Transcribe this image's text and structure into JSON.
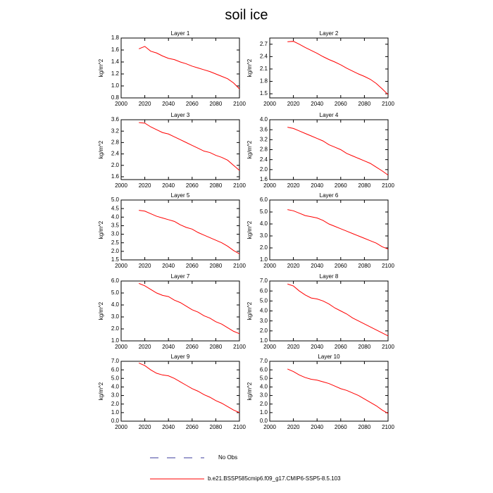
{
  "title": "soil ice",
  "obs_legend": {
    "name": "No Obs",
    "color": "#3c3c9c"
  },
  "chart_data": [
    {
      "type": "line",
      "title": "Layer 1",
      "ylabel": "kg/m^2",
      "xlim": [
        2000,
        2100
      ],
      "xticks": [
        2000,
        2020,
        2040,
        2060,
        2080,
        2100
      ],
      "ylim": [
        0.8,
        1.8
      ],
      "yticks": [
        0.8,
        {
          "value": 1,
          "label": "1.0"
        },
        1.2,
        1.4,
        1.6,
        1.8
      ],
      "x": [
        2015,
        2020,
        2025,
        2030,
        2035,
        2040,
        2045,
        2050,
        2055,
        2060,
        2065,
        2070,
        2075,
        2080,
        2085,
        2090,
        2095,
        2100
      ],
      "series": [
        {
          "name": "b.e21.BSSP585cmip6.f09_g17.CMIP6-SSP5-8.5.103",
          "color": "#ff0000",
          "values": [
            1.62,
            1.66,
            1.58,
            1.55,
            1.5,
            1.46,
            1.44,
            1.4,
            1.37,
            1.33,
            1.3,
            1.27,
            1.24,
            1.2,
            1.16,
            1.12,
            1.05,
            0.95
          ]
        }
      ]
    },
    {
      "type": "line",
      "title": "Layer 2",
      "ylabel": "kg/m^2",
      "xlim": [
        2000,
        2100
      ],
      "xticks": [
        2000,
        2020,
        2040,
        2060,
        2080,
        2100
      ],
      "ylim": [
        1.4,
        2.85
      ],
      "yticks": [
        1.5,
        1.8,
        2.1,
        2.4,
        2.7
      ],
      "x": [
        2015,
        2020,
        2025,
        2030,
        2035,
        2040,
        2045,
        2050,
        2055,
        2060,
        2065,
        2070,
        2075,
        2080,
        2085,
        2090,
        2095,
        2100
      ],
      "series": [
        {
          "name": "b.e21.BSSP585cmip6.f09_g17.CMIP6-SSP5-8.5.103",
          "color": "#ff0000",
          "values": [
            2.76,
            2.77,
            2.7,
            2.62,
            2.55,
            2.48,
            2.4,
            2.33,
            2.27,
            2.2,
            2.12,
            2.05,
            1.98,
            1.92,
            1.85,
            1.75,
            1.62,
            1.48
          ]
        }
      ]
    },
    {
      "type": "line",
      "title": "Layer 3",
      "ylabel": "kg/m^2",
      "xlim": [
        2000,
        2100
      ],
      "xticks": [
        2000,
        2020,
        2040,
        2060,
        2080,
        2100
      ],
      "ylim": [
        1.5,
        3.6
      ],
      "yticks": [
        1.6,
        {
          "value": 2,
          "label": "2.0"
        },
        2.4,
        2.8,
        3.2,
        3.6
      ],
      "x": [
        2015,
        2020,
        2025,
        2030,
        2035,
        2040,
        2045,
        2050,
        2055,
        2060,
        2065,
        2070,
        2075,
        2080,
        2085,
        2090,
        2095,
        2100
      ],
      "series": [
        {
          "name": "b.e21.BSSP585cmip6.f09_g17.CMIP6-SSP5-8.5.103",
          "color": "#ff0000",
          "values": [
            3.5,
            3.48,
            3.35,
            3.25,
            3.15,
            3.1,
            3.0,
            2.9,
            2.8,
            2.7,
            2.6,
            2.5,
            2.45,
            2.35,
            2.28,
            2.18,
            2.0,
            1.82
          ]
        }
      ]
    },
    {
      "type": "line",
      "title": "Layer 4",
      "ylabel": "kg/m^2",
      "xlim": [
        2000,
        2100
      ],
      "xticks": [
        2000,
        2020,
        2040,
        2060,
        2080,
        2100
      ],
      "ylim": [
        1.6,
        4.0
      ],
      "yticks": [
        1.6,
        {
          "value": 2,
          "label": "2.0"
        },
        2.4,
        2.8,
        3.2,
        3.6,
        {
          "value": 4,
          "label": "4.0"
        }
      ],
      "x": [
        2015,
        2020,
        2025,
        2030,
        2035,
        2040,
        2045,
        2050,
        2055,
        2060,
        2065,
        2070,
        2075,
        2080,
        2085,
        2090,
        2095,
        2100
      ],
      "series": [
        {
          "name": "b.e21.BSSP585cmip6.f09_g17.CMIP6-SSP5-8.5.103",
          "color": "#ff0000",
          "values": [
            3.7,
            3.65,
            3.55,
            3.45,
            3.35,
            3.25,
            3.15,
            3.0,
            2.9,
            2.8,
            2.65,
            2.55,
            2.45,
            2.35,
            2.25,
            2.1,
            1.95,
            1.78
          ]
        }
      ]
    },
    {
      "type": "line",
      "title": "Layer 5",
      "ylabel": "kg/m^2",
      "xlim": [
        2000,
        2100
      ],
      "xticks": [
        2000,
        2020,
        2040,
        2060,
        2080,
        2100
      ],
      "ylim": [
        1.5,
        5.0
      ],
      "yticks": [
        1.5,
        {
          "value": 2,
          "label": "2.0"
        },
        2.5,
        {
          "value": 3,
          "label": "3.0"
        },
        3.5,
        {
          "value": 4,
          "label": "4.0"
        },
        4.5,
        {
          "value": 5,
          "label": "5.0"
        }
      ],
      "x": [
        2015,
        2020,
        2025,
        2030,
        2035,
        2040,
        2045,
        2050,
        2055,
        2060,
        2065,
        2070,
        2075,
        2080,
        2085,
        2090,
        2095,
        2100
      ],
      "series": [
        {
          "name": "b.e21.BSSP585cmip6.f09_g17.CMIP6-SSP5-8.5.103",
          "color": "#ff0000",
          "values": [
            4.4,
            4.35,
            4.2,
            4.05,
            3.95,
            3.85,
            3.75,
            3.55,
            3.4,
            3.3,
            3.1,
            2.95,
            2.8,
            2.65,
            2.5,
            2.3,
            2.05,
            1.85
          ]
        }
      ]
    },
    {
      "type": "line",
      "title": "Layer 6",
      "ylabel": "kg/m^2",
      "xlim": [
        2000,
        2100
      ],
      "xticks": [
        2000,
        2020,
        2040,
        2060,
        2080,
        2100
      ],
      "ylim": [
        1,
        6
      ],
      "yticks": [
        {
          "value": 1,
          "label": "1.0"
        },
        {
          "value": 2,
          "label": "2.0"
        },
        {
          "value": 3,
          "label": "3.0"
        },
        {
          "value": 4,
          "label": "4.0"
        },
        {
          "value": 5,
          "label": "5.0"
        },
        {
          "value": 6,
          "label": "6.0"
        }
      ],
      "x": [
        2015,
        2020,
        2025,
        2030,
        2035,
        2040,
        2045,
        2050,
        2055,
        2060,
        2065,
        2070,
        2075,
        2080,
        2085,
        2090,
        2095,
        2100
      ],
      "series": [
        {
          "name": "b.e21.BSSP585cmip6.f09_g17.CMIP6-SSP5-8.5.103",
          "color": "#ff0000",
          "values": [
            5.2,
            5.1,
            4.9,
            4.7,
            4.6,
            4.5,
            4.3,
            4.0,
            3.8,
            3.6,
            3.4,
            3.2,
            3.0,
            2.8,
            2.6,
            2.4,
            2.1,
            1.9
          ]
        }
      ]
    },
    {
      "type": "line",
      "title": "Layer 7",
      "ylabel": "kg/m^2",
      "xlim": [
        2000,
        2100
      ],
      "xticks": [
        2000,
        2020,
        2040,
        2060,
        2080,
        2100
      ],
      "ylim": [
        1,
        6
      ],
      "yticks": [
        {
          "value": 1,
          "label": "1.0"
        },
        {
          "value": 2,
          "label": "2.0"
        },
        {
          "value": 3,
          "label": "3.0"
        },
        {
          "value": 4,
          "label": "4.0"
        },
        {
          "value": 5,
          "label": "5.0"
        },
        {
          "value": 6,
          "label": "6.0"
        }
      ],
      "x": [
        2015,
        2020,
        2025,
        2030,
        2035,
        2040,
        2045,
        2050,
        2055,
        2060,
        2065,
        2070,
        2075,
        2080,
        2085,
        2090,
        2095,
        2100
      ],
      "series": [
        {
          "name": "b.e21.BSSP585cmip6.f09_g17.CMIP6-SSP5-8.5.103",
          "color": "#ff0000",
          "values": [
            5.8,
            5.6,
            5.3,
            5.0,
            4.8,
            4.7,
            4.4,
            4.2,
            3.9,
            3.6,
            3.4,
            3.1,
            2.9,
            2.6,
            2.4,
            2.1,
            1.8,
            1.6
          ]
        }
      ]
    },
    {
      "type": "line",
      "title": "Layer 8",
      "ylabel": "kg/m^2",
      "xlim": [
        2000,
        2100
      ],
      "xticks": [
        2000,
        2020,
        2040,
        2060,
        2080,
        2100
      ],
      "ylim": [
        1,
        7
      ],
      "yticks": [
        {
          "value": 1,
          "label": "1.0"
        },
        {
          "value": 2,
          "label": "2.0"
        },
        {
          "value": 3,
          "label": "3.0"
        },
        {
          "value": 4,
          "label": "4.0"
        },
        {
          "value": 5,
          "label": "5.0"
        },
        {
          "value": 6,
          "label": "6.0"
        },
        {
          "value": 7,
          "label": "7.0"
        }
      ],
      "x": [
        2015,
        2020,
        2025,
        2030,
        2035,
        2040,
        2045,
        2050,
        2055,
        2060,
        2065,
        2070,
        2075,
        2080,
        2085,
        2090,
        2095,
        2100
      ],
      "series": [
        {
          "name": "b.e21.BSSP585cmip6.f09_g17.CMIP6-SSP5-8.5.103",
          "color": "#ff0000",
          "values": [
            6.7,
            6.5,
            6.0,
            5.6,
            5.3,
            5.2,
            5.0,
            4.7,
            4.3,
            4.0,
            3.7,
            3.3,
            3.0,
            2.7,
            2.4,
            2.1,
            1.8,
            1.5
          ]
        }
      ]
    },
    {
      "type": "line",
      "title": "Layer 9",
      "ylabel": "kg/m^2",
      "xlim": [
        2000,
        2100
      ],
      "xticks": [
        2000,
        2020,
        2040,
        2060,
        2080,
        2100
      ],
      "ylim": [
        0,
        7
      ],
      "yticks": [
        {
          "value": 0,
          "label": "0.0"
        },
        {
          "value": 1,
          "label": "1.0"
        },
        {
          "value": 2,
          "label": "2.0"
        },
        {
          "value": 3,
          "label": "3.0"
        },
        {
          "value": 4,
          "label": "4.0"
        },
        {
          "value": 5,
          "label": "5.0"
        },
        {
          "value": 6,
          "label": "6.0"
        },
        {
          "value": 7,
          "label": "7.0"
        }
      ],
      "x": [
        2015,
        2020,
        2025,
        2030,
        2035,
        2040,
        2045,
        2050,
        2055,
        2060,
        2065,
        2070,
        2075,
        2080,
        2085,
        2090,
        2095,
        2100
      ],
      "series": [
        {
          "name": "b.e21.BSSP585cmip6.f09_g17.CMIP6-SSP5-8.5.103",
          "color": "#ff0000",
          "values": [
            6.8,
            6.5,
            6.0,
            5.6,
            5.4,
            5.3,
            5.0,
            4.6,
            4.2,
            3.8,
            3.5,
            3.1,
            2.8,
            2.4,
            2.1,
            1.7,
            1.3,
            1.0
          ]
        }
      ]
    },
    {
      "type": "line",
      "title": "Layer 10",
      "ylabel": "kg/m^2",
      "xlim": [
        2000,
        2100
      ],
      "xticks": [
        2000,
        2020,
        2040,
        2060,
        2080,
        2100
      ],
      "ylim": [
        0,
        7
      ],
      "yticks": [
        {
          "value": 0,
          "label": "0.0"
        },
        {
          "value": 1,
          "label": "1.0"
        },
        {
          "value": 2,
          "label": "2.0"
        },
        {
          "value": 3,
          "label": "3.0"
        },
        {
          "value": 4,
          "label": "4.0"
        },
        {
          "value": 5,
          "label": "5.0"
        },
        {
          "value": 6,
          "label": "6.0"
        },
        {
          "value": 7,
          "label": "7.0"
        }
      ],
      "x": [
        2015,
        2020,
        2025,
        2030,
        2035,
        2040,
        2045,
        2050,
        2055,
        2060,
        2065,
        2070,
        2075,
        2080,
        2085,
        2090,
        2095,
        2100
      ],
      "series": [
        {
          "name": "b.e21.BSSP585cmip6.f09_g17.CMIP6-SSP5-8.5.103",
          "color": "#ff0000",
          "values": [
            6.1,
            5.8,
            5.4,
            5.1,
            4.9,
            4.8,
            4.6,
            4.4,
            4.1,
            3.8,
            3.6,
            3.3,
            3.0,
            2.6,
            2.2,
            1.8,
            1.3,
            0.9
          ]
        }
      ]
    }
  ]
}
